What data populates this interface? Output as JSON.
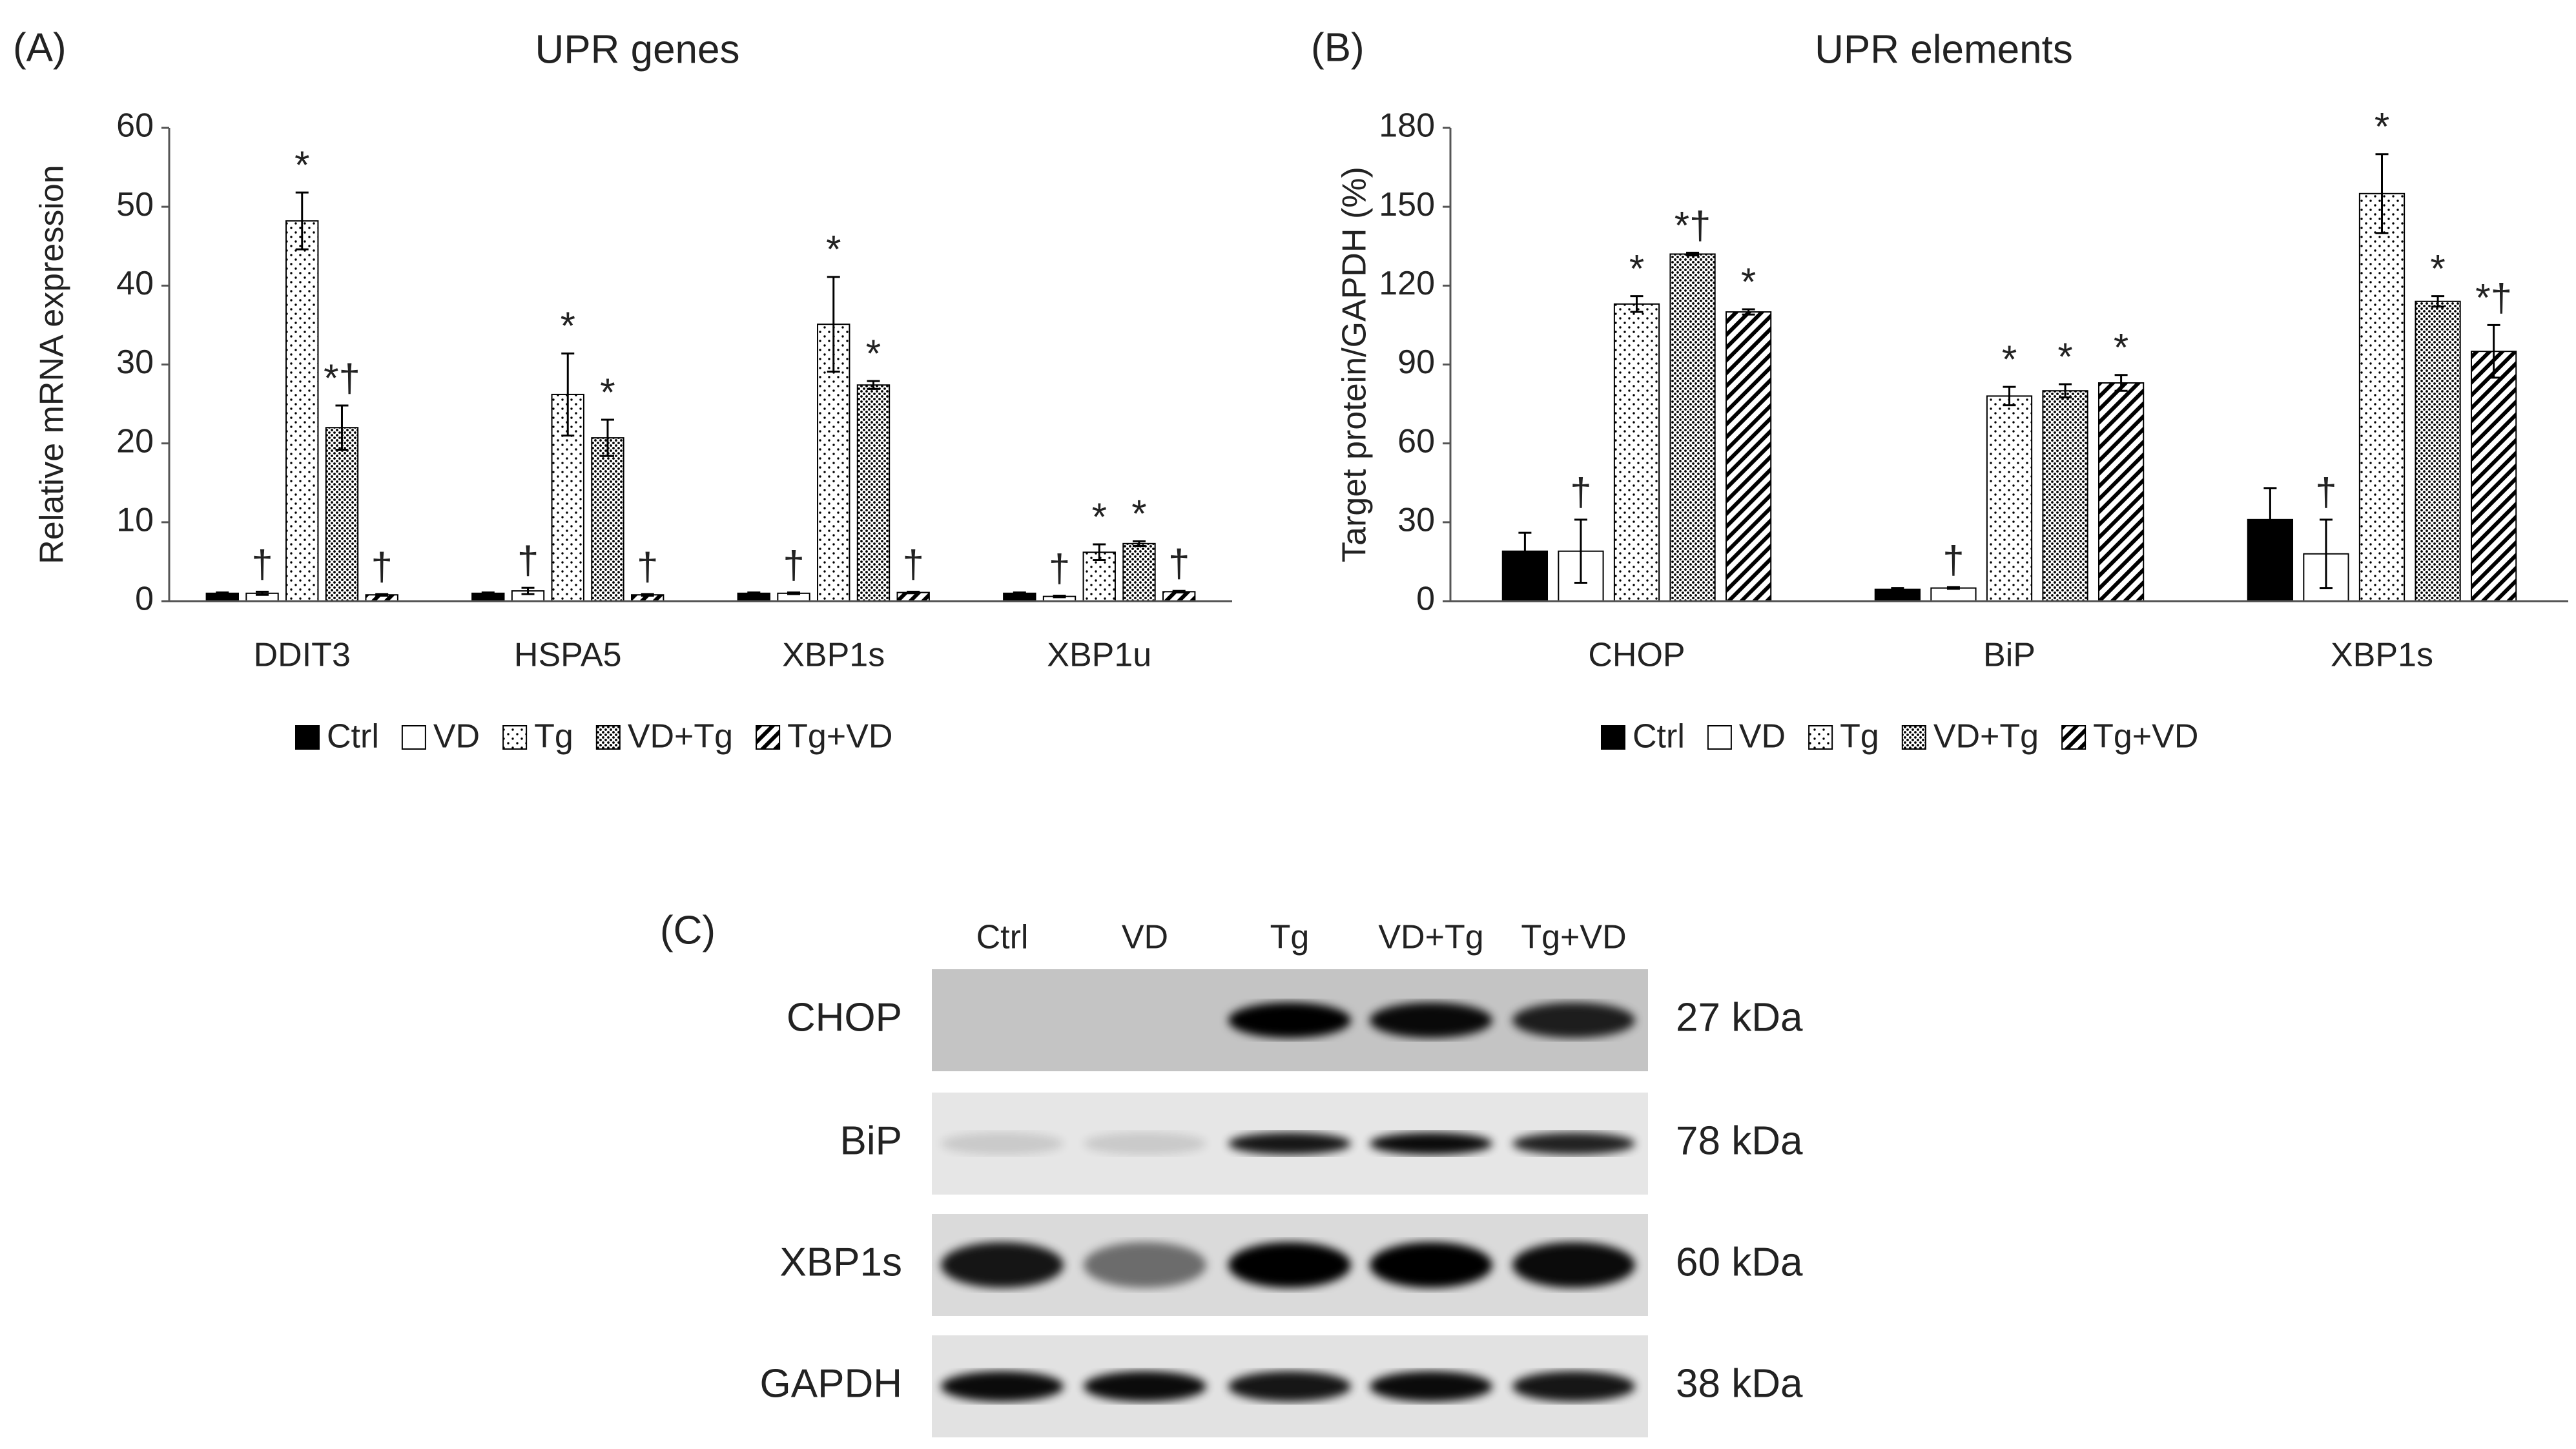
{
  "chart_data": [
    {
      "type": "bar",
      "panel_label": "(A)",
      "title": "UPR genes",
      "y_label": "Relative mRNA expression",
      "categories": [
        "DDIT3",
        "HSPA5",
        "XBP1s",
        "XBP1u"
      ],
      "series": [
        {
          "name": "Ctrl",
          "color": "#000000",
          "pattern": "solid",
          "values": [
            1,
            1,
            1,
            1
          ],
          "errors": [
            0.1,
            0.1,
            0.1,
            0.1
          ]
        },
        {
          "name": "VD",
          "color": "#000000",
          "pattern": "none",
          "values": [
            1,
            1.3,
            1,
            0.6
          ],
          "errors": [
            0.2,
            0.4,
            0.1,
            0.1
          ],
          "annotations": [
            "†",
            "†",
            "†",
            "†"
          ]
        },
        {
          "name": "Tg",
          "color": "#000000",
          "pattern": "dots",
          "values": [
            48.2,
            26.2,
            35.1,
            6.2
          ],
          "errors": [
            3.6,
            5.2,
            6,
            1
          ],
          "annotations": [
            "*",
            "*",
            "*",
            "*"
          ]
        },
        {
          "name": "VD+Tg",
          "color": "#000000",
          "pattern": "dense-dots",
          "values": [
            22,
            20.7,
            27.4,
            7.3
          ],
          "errors": [
            2.8,
            2.3,
            0.5,
            0.3
          ],
          "annotations": [
            "*†",
            "*",
            "*",
            "*"
          ]
        },
        {
          "name": "Tg+VD",
          "color": "#000000",
          "pattern": "hatch",
          "values": [
            0.8,
            0.8,
            1.1,
            1.2
          ],
          "errors": [
            0.1,
            0.1,
            0.1,
            0.1
          ],
          "annotations": [
            "†",
            "†",
            "†",
            "†"
          ]
        }
      ],
      "ylim": [
        0,
        60
      ],
      "yticks": [
        0,
        10,
        20,
        30,
        40,
        50,
        60
      ],
      "grid": false,
      "legend": "bottom"
    },
    {
      "type": "bar",
      "panel_label": "(B)",
      "title": "UPR elements",
      "y_label": "Target protein/GAPDH (%)",
      "categories": [
        "CHOP",
        "BiP",
        "XBP1s"
      ],
      "series": [
        {
          "name": "Ctrl",
          "color": "#000000",
          "pattern": "solid",
          "values": [
            19,
            4.5,
            31
          ],
          "errors": [
            7,
            0.5,
            12
          ]
        },
        {
          "name": "VD",
          "color": "#000000",
          "pattern": "none",
          "values": [
            19,
            5,
            18
          ],
          "errors": [
            12,
            0.3,
            13
          ],
          "annotations": [
            "†",
            "†",
            "†"
          ]
        },
        {
          "name": "Tg",
          "color": "#000000",
          "pattern": "dots",
          "values": [
            113,
            78,
            155
          ],
          "errors": [
            3,
            3.5,
            15
          ],
          "annotations": [
            "*",
            "*",
            "*"
          ]
        },
        {
          "name": "VD+Tg",
          "color": "#000000",
          "pattern": "dense-dots",
          "values": [
            132,
            80,
            114
          ],
          "errors": [
            0.5,
            2.5,
            2
          ],
          "annotations": [
            "*†",
            "*",
            "*"
          ]
        },
        {
          "name": "Tg+VD",
          "color": "#000000",
          "pattern": "hatch",
          "values": [
            110,
            83,
            95
          ],
          "errors": [
            1,
            3,
            10
          ],
          "annotations": [
            "*",
            "*",
            "*†"
          ]
        }
      ],
      "ylim": [
        0,
        180
      ],
      "yticks": [
        0,
        30,
        60,
        90,
        120,
        150,
        180
      ],
      "grid": false,
      "legend": "bottom"
    }
  ],
  "blot": {
    "panel_label": "(C)",
    "lanes": [
      "Ctrl",
      "VD",
      "Tg",
      "VD+Tg",
      "Tg+VD"
    ],
    "rows": [
      {
        "name": "CHOP",
        "size": "27 kDa"
      },
      {
        "name": "BiP",
        "size": "78 kDa"
      },
      {
        "name": "XBP1s",
        "size": "60 kDa"
      },
      {
        "name": "GAPDH",
        "size": "38 kDa"
      }
    ]
  }
}
